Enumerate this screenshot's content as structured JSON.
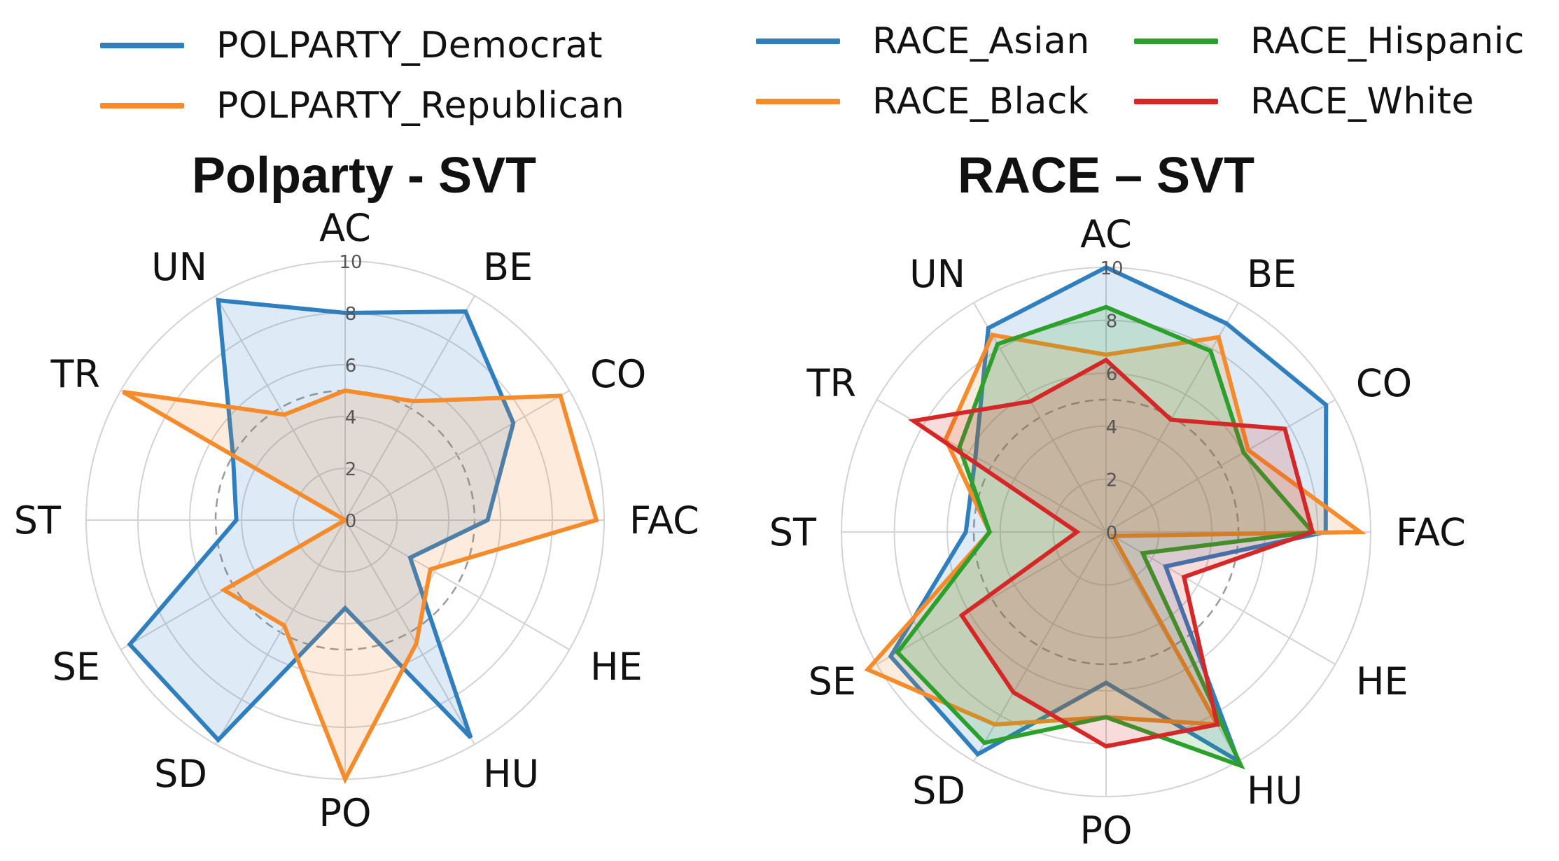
{
  "chart_data": [
    {
      "type": "radar",
      "title": "Polparty - SVT",
      "categories": [
        "AC",
        "BE",
        "CO",
        "FAC",
        "HE",
        "HU",
        "PO",
        "SD",
        "SE",
        "ST",
        "TR",
        "UN"
      ],
      "rlim": [
        0,
        10
      ],
      "rticks": [
        "0",
        "2",
        "4",
        "6",
        "8",
        "10"
      ],
      "reference_ring": 5,
      "legend": {
        "placement": "top",
        "columns": 1
      },
      "series": [
        {
          "name": "POLPARTY_Democrat",
          "color": "#2f7fbf",
          "values": [
            8.0,
            9.3,
            7.5,
            5.5,
            2.9,
            9.7,
            3.4,
            9.8,
            9.6,
            4.2,
            5.0,
            9.8
          ]
        },
        {
          "name": "POLPARTY_Republican",
          "color": "#f58b2a",
          "values": [
            5.0,
            5.3,
            9.6,
            9.7,
            3.8,
            5.5,
            10.0,
            4.7,
            5.4,
            0.0,
            9.9,
            4.7
          ]
        }
      ]
    },
    {
      "type": "radar",
      "title": "RACE – SVT",
      "categories": [
        "AC",
        "BE",
        "CO",
        "FAC",
        "HE",
        "HU",
        "PO",
        "SD",
        "SE",
        "ST",
        "TR",
        "UN"
      ],
      "rlim": [
        0,
        10
      ],
      "rticks": [
        "0",
        "2",
        "4",
        "6",
        "8",
        "10"
      ],
      "reference_ring": 5,
      "legend": {
        "placement": "top",
        "columns": 2
      },
      "series": [
        {
          "name": "RACE_Asian",
          "color": "#2f7fbf",
          "values": [
            10.0,
            9.1,
            9.6,
            8.3,
            2.6,
            10.0,
            5.7,
            9.7,
            9.4,
            5.3,
            5.7,
            8.9
          ]
        },
        {
          "name": "RACE_Black",
          "color": "#f58b2a",
          "values": [
            6.7,
            8.5,
            6.2,
            9.6,
            0.3,
            8.4,
            7.0,
            8.4,
            10.4,
            4.4,
            7.0,
            8.6
          ]
        },
        {
          "name": "RACE_Hispanic",
          "color": "#2ca02c",
          "values": [
            8.5,
            7.9,
            6.0,
            7.8,
            1.6,
            10.2,
            7.0,
            9.2,
            9.1,
            4.4,
            6.4,
            8.2
          ]
        },
        {
          "name": "RACE_White",
          "color": "#d62728",
          "values": [
            6.5,
            4.9,
            7.8,
            7.8,
            3.4,
            8.4,
            8.1,
            7.0,
            6.3,
            1.1,
            8.4,
            5.7
          ]
        }
      ]
    }
  ]
}
